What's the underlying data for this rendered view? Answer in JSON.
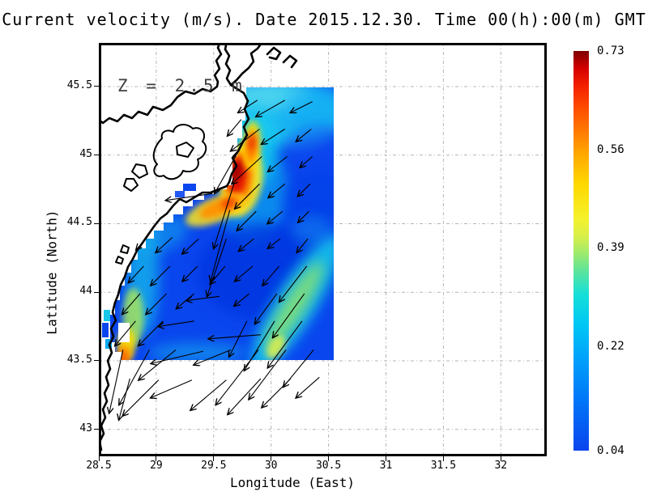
{
  "title": "Current velocity (m/s). Date 2015.12.30. Time 00(h):00(m) GMT",
  "annotation": "Z = 2.5 m",
  "axes": {
    "xlabel": "Longitude (East)",
    "ylabel": "Latitude (North)",
    "x_ticks": [
      "28.5",
      "29",
      "29.5",
      "30",
      "30.5",
      "31",
      "31.5",
      "32"
    ],
    "y_ticks": [
      "45.5",
      "45",
      "44.5",
      "44",
      "43.5",
      "43"
    ]
  },
  "colorbar": {
    "labels": [
      "0.73",
      "0.56",
      "0.39",
      "0.22",
      "0.04"
    ],
    "min": 0.04,
    "max": 0.73,
    "stops": [
      [
        0.04,
        "#0b44ee"
      ],
      [
        0.13,
        "#0077f8"
      ],
      [
        0.2,
        "#00a2fa"
      ],
      [
        0.26,
        "#00c8f4"
      ],
      [
        0.31,
        "#16dfd8"
      ],
      [
        0.35,
        "#5ce49c"
      ],
      [
        0.38,
        "#9dea6e"
      ],
      [
        0.41,
        "#d8ef4a"
      ],
      [
        0.44,
        "#f4f22c"
      ],
      [
        0.5,
        "#ffd800"
      ],
      [
        0.55,
        "#ffaa00"
      ],
      [
        0.59,
        "#ff7c00"
      ],
      [
        0.63,
        "#ff4e00"
      ],
      [
        0.67,
        "#f42000"
      ],
      [
        0.7,
        "#d40000"
      ],
      [
        0.73,
        "#7e0000"
      ]
    ]
  },
  "colors": {
    "land": "#ffffff",
    "sea_base": "#0a46ee",
    "coast": "#000000",
    "grid": "#b4b4b4",
    "arrow": "#000000",
    "annotation": "#3f3f3f"
  },
  "chart_data": {
    "type": "heatmap",
    "subtype": "vector-field-over-speed-heatmap",
    "variable": "Current velocity (m/s)",
    "depth_label": "Z = 2.5 m",
    "datetime_label": "2015.12.30 00(h):00(m) GMT",
    "xlabel": "Longitude (East)",
    "ylabel": "Latitude (North)",
    "xlim": [
      28.5,
      32.4
    ],
    "ylim": [
      42.8,
      45.82
    ],
    "grid": "0.5 degree, dashed gray",
    "legend_position": "right colorbar",
    "field_extent": {
      "lon": [
        28.55,
        30.55
      ],
      "lat": [
        43.5,
        45.45
      ]
    },
    "speed_range_ms": [
      0.04,
      0.73
    ],
    "hotspots": [
      {
        "lon": 29.71,
        "lat": 44.85,
        "speed": 0.73,
        "note": "max-speed core just off Danube delta coast"
      },
      {
        "lon": 29.83,
        "lat": 45.07,
        "speed": 0.55,
        "note": "secondary streak north of core"
      },
      {
        "lon": 28.71,
        "lat": 43.53,
        "speed": 0.55,
        "note": "coastal hotspot at SW corner of field"
      },
      {
        "lon": 30.2,
        "lat": 43.9,
        "speed": 0.38,
        "note": "diagonal green band toward SE"
      }
    ],
    "vectors": [
      [
        29.88,
        45.4,
        -0.14,
        -0.09
      ],
      [
        30.12,
        45.4,
        -0.21,
        -0.12
      ],
      [
        30.36,
        45.39,
        -0.16,
        -0.08
      ],
      [
        29.74,
        45.26,
        -0.1,
        -0.12
      ],
      [
        29.9,
        45.19,
        -0.21,
        -0.16
      ],
      [
        30.12,
        45.19,
        -0.17,
        -0.11
      ],
      [
        30.35,
        45.19,
        -0.11,
        -0.09
      ],
      [
        29.71,
        45.02,
        -0.17,
        -0.3
      ],
      [
        29.92,
        44.99,
        -0.22,
        -0.2
      ],
      [
        30.14,
        44.99,
        -0.14,
        -0.11
      ],
      [
        30.36,
        44.99,
        -0.09,
        -0.08
      ],
      [
        29.68,
        44.8,
        -0.15,
        -0.48
      ],
      [
        29.9,
        44.79,
        -0.18,
        -0.18
      ],
      [
        30.12,
        44.79,
        -0.12,
        -0.1
      ],
      [
        30.34,
        44.79,
        -0.09,
        -0.09
      ],
      [
        29.49,
        44.72,
        -0.34,
        -0.05
      ],
      [
        29.64,
        44.6,
        -0.14,
        -0.52
      ],
      [
        29.87,
        44.59,
        -0.14,
        -0.14
      ],
      [
        30.1,
        44.59,
        -0.11,
        -0.09
      ],
      [
        30.33,
        44.59,
        -0.08,
        -0.08
      ],
      [
        28.92,
        44.4,
        -0.08,
        -0.09
      ],
      [
        29.14,
        44.4,
        -0.12,
        -0.11
      ],
      [
        29.37,
        44.39,
        -0.12,
        -0.11
      ],
      [
        29.61,
        44.39,
        -0.14,
        -0.42
      ],
      [
        29.85,
        44.39,
        -0.11,
        -0.09
      ],
      [
        30.08,
        44.39,
        -0.09,
        -0.07
      ],
      [
        30.32,
        44.39,
        -0.08,
        -0.1
      ],
      [
        28.89,
        44.19,
        -0.11,
        -0.12
      ],
      [
        29.12,
        44.19,
        -0.14,
        -0.14
      ],
      [
        29.36,
        44.19,
        -0.11,
        -0.11
      ],
      [
        29.6,
        44.19,
        -0.11,
        -0.13
      ],
      [
        29.84,
        44.19,
        -0.13,
        -0.11
      ],
      [
        30.07,
        44.19,
        -0.12,
        -0.14
      ],
      [
        30.31,
        44.19,
        -0.2,
        -0.26
      ],
      [
        28.86,
        43.99,
        -0.13,
        -0.15
      ],
      [
        29.09,
        43.99,
        -0.15,
        -0.15
      ],
      [
        29.33,
        43.99,
        -0.13,
        -0.11
      ],
      [
        29.55,
        43.97,
        -0.24,
        -0.03
      ],
      [
        29.81,
        43.99,
        -0.11,
        -0.09
      ],
      [
        30.05,
        43.99,
        -0.16,
        -0.22
      ],
      [
        30.29,
        43.99,
        -0.23,
        -0.32
      ],
      [
        28.82,
        43.79,
        -0.15,
        -0.18
      ],
      [
        29.06,
        43.79,
        -0.18,
        -0.18
      ],
      [
        29.33,
        43.79,
        -0.26,
        -0.04
      ],
      [
        29.91,
        43.69,
        -0.38,
        -0.03
      ],
      [
        29.79,
        43.79,
        -0.13,
        -0.26
      ],
      [
        30.03,
        43.79,
        -0.22,
        -0.36
      ],
      [
        30.27,
        43.79,
        -0.25,
        -0.34
      ],
      [
        28.71,
        43.58,
        -0.1,
        -0.46
      ],
      [
        28.94,
        43.58,
        -0.22,
        -0.4
      ],
      [
        29.17,
        43.58,
        -0.27,
        -0.22
      ],
      [
        29.41,
        43.57,
        -0.38,
        -0.09
      ],
      [
        29.65,
        43.58,
        -0.27,
        -0.11
      ],
      [
        29.89,
        43.58,
        -0.31,
        -0.4
      ],
      [
        30.13,
        43.58,
        -0.27,
        -0.36
      ],
      [
        30.37,
        43.58,
        -0.22,
        -0.27
      ],
      [
        28.77,
        43.37,
        -0.08,
        -0.3
      ],
      [
        29.02,
        43.36,
        -0.26,
        -0.26
      ],
      [
        29.31,
        43.36,
        -0.3,
        -0.13
      ],
      [
        29.61,
        43.36,
        -0.26,
        -0.22
      ],
      [
        29.91,
        43.37,
        -0.24,
        -0.26
      ],
      [
        30.17,
        43.37,
        -0.21,
        -0.21
      ],
      [
        30.42,
        43.38,
        -0.17,
        -0.15
      ]
    ],
    "field_blobs": [
      [
        30.08,
        45.3,
        85,
        42,
        0,
        "#22ccf2",
        0.85,
        8
      ],
      [
        29.95,
        45.43,
        55,
        18,
        0,
        "#66e4ee",
        0.6,
        8
      ],
      [
        30.42,
        45.34,
        45,
        30,
        0,
        "#0fa8f6",
        0.5,
        8
      ],
      [
        30.45,
        44.95,
        55,
        45,
        0,
        "#0a46ee",
        0.55,
        8
      ],
      [
        29.86,
        45.05,
        26,
        48,
        4,
        "#18ccee",
        0.9,
        8
      ],
      [
        29.86,
        44.7,
        40,
        62,
        8,
        "#10c4ee",
        0.55,
        8
      ],
      [
        29.95,
        44.15,
        85,
        60,
        0,
        "#0536e0",
        0.8,
        8
      ],
      [
        30.45,
        44.65,
        50,
        40,
        0,
        "#0640e8",
        0.6,
        8
      ],
      [
        28.88,
        44.15,
        20,
        80,
        0,
        "#14c2ea",
        0.7,
        8
      ],
      [
        29.05,
        44.42,
        34,
        20,
        -25,
        "#12b4ec",
        0.5,
        8
      ],
      [
        30.22,
        43.92,
        98,
        25,
        -58,
        "#18ccea",
        0.85,
        8
      ],
      [
        30.2,
        43.9,
        64,
        13,
        -58,
        "#8ee26a",
        0.85,
        8
      ],
      [
        30.04,
        43.6,
        16,
        9,
        -58,
        "#dcee4e",
        0.9,
        4
      ],
      [
        29.35,
        43.56,
        60,
        12,
        0,
        "#14c0ea",
        0.5,
        8
      ],
      [
        30.35,
        44.45,
        25,
        18,
        0,
        "#1aaef0",
        0.35,
        8
      ],
      [
        29.74,
        44.82,
        26,
        46,
        8,
        "#ffe81e",
        0.92,
        4
      ],
      [
        29.72,
        44.82,
        17,
        36,
        8,
        "#ff8e00",
        1,
        4
      ],
      [
        29.71,
        44.84,
        11,
        26,
        8,
        "#e61400",
        1,
        4
      ],
      [
        29.7,
        44.88,
        6,
        13,
        8,
        "#960000",
        0.9,
        4
      ],
      [
        29.83,
        45.07,
        11,
        30,
        4,
        "#ffe000",
        0.9,
        4
      ],
      [
        29.83,
        45.06,
        7,
        20,
        4,
        "#ff7e00",
        0.95,
        4
      ],
      [
        29.83,
        45.09,
        4,
        10,
        4,
        "#e62000",
        0.85,
        4
      ],
      [
        29.52,
        44.6,
        40,
        15,
        -22,
        "#ffe81e",
        0.85,
        4
      ],
      [
        29.56,
        44.62,
        28,
        10,
        -22,
        "#ff9000",
        0.95,
        4
      ],
      [
        29.63,
        44.65,
        9,
        6,
        -22,
        "#ee3c00",
        0.9,
        4
      ],
      [
        28.8,
        43.82,
        13,
        36,
        0,
        "#a6e65c",
        0.85,
        4
      ],
      [
        28.74,
        43.62,
        11,
        20,
        0,
        "#ffdf00",
        0.95,
        4
      ],
      [
        28.72,
        43.54,
        8,
        12,
        0,
        "#ff8c00",
        1,
        4
      ],
      [
        28.71,
        43.52,
        4,
        6,
        0,
        "#f44a00",
        0.95,
        4
      ]
    ]
  }
}
